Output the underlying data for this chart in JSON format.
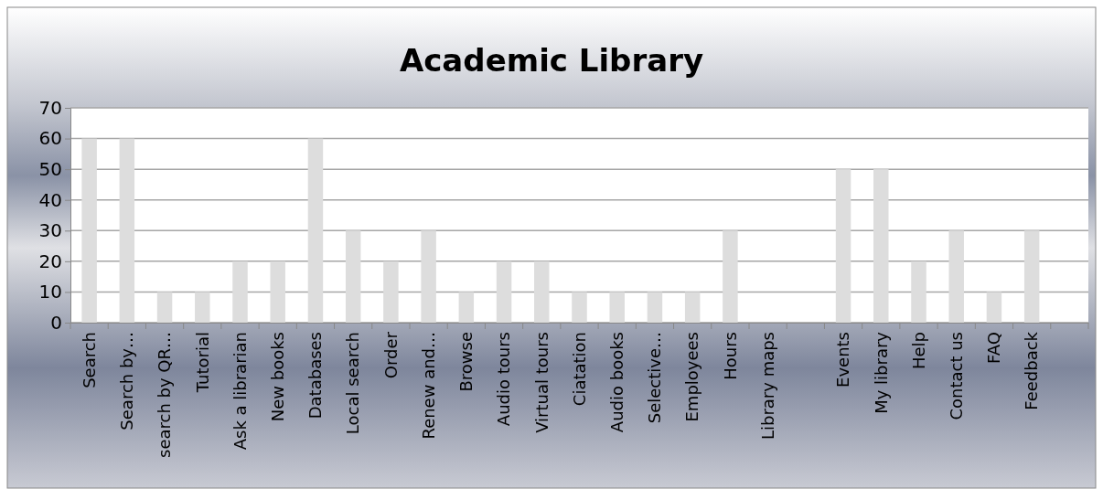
{
  "chart_data": {
    "type": "bar",
    "title": "Academic Library",
    "categories": [
      "Search",
      "Search by…",
      "search by QR…",
      "Tutorial",
      "Ask a librarian",
      "New books",
      "Databases",
      "Local search",
      "Order",
      "Renew and…",
      "Browse",
      "Audio tours",
      "Virtual tours",
      "Ciatation",
      "Audio books",
      "Selective…",
      "Employees",
      "Hours",
      "Library maps",
      null,
      "Events",
      "My library",
      "Help",
      "Contact us",
      "FAQ",
      "Feedback",
      null
    ],
    "values": [
      60,
      60,
      10,
      10,
      20,
      20,
      60,
      30,
      20,
      30,
      10,
      20,
      20,
      10,
      10,
      10,
      10,
      30,
      0,
      0,
      50,
      50,
      20,
      30,
      10,
      30,
      null
    ],
    "color": "#dddddd",
    "ylim": [
      0,
      70
    ],
    "yticks": [
      0,
      10,
      20,
      30,
      40,
      50,
      60,
      70
    ],
    "grid": "y"
  }
}
